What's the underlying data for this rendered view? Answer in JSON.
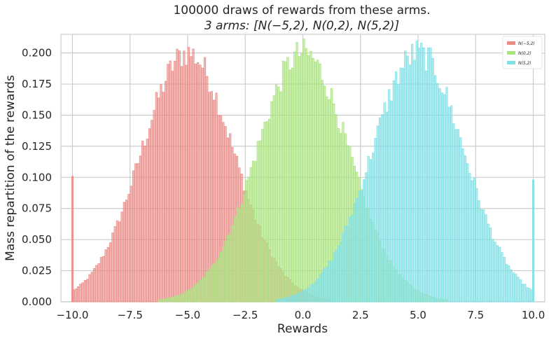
{
  "chart_data": {
    "type": "histogram",
    "title_line1": "100000 draws of rewards from these arms.",
    "title_line2": "3 arms: [N(−5,2), N(0,2), N(5,2)]",
    "xlabel": "Rewards",
    "ylabel": "Mass repartition of the rewards",
    "xlim": [
      -10.5,
      10.5
    ],
    "ylim": [
      0,
      0.215
    ],
    "xticks": [
      -10.0,
      -7.5,
      -5.0,
      -2.5,
      0.0,
      2.5,
      5.0,
      7.5,
      10.0
    ],
    "xtick_labels": [
      "−10.0",
      "−7.5",
      "−5.0",
      "−2.5",
      "0.0",
      "2.5",
      "5.0",
      "7.5",
      "10.0"
    ],
    "yticks": [
      0.0,
      0.025,
      0.05,
      0.075,
      0.1,
      0.125,
      0.15,
      0.175,
      0.2
    ],
    "ytick_labels": [
      "0.000",
      "0.025",
      "0.050",
      "0.075",
      "0.100",
      "0.125",
      "0.150",
      "0.175",
      "0.200"
    ],
    "grid": true,
    "legend_position": "top-right",
    "clip_range": [
      -10.0,
      10.0
    ],
    "bin_width": 0.1,
    "series": [
      {
        "name": "N(−5,2)",
        "mean": -5,
        "std": 2,
        "peak": 0.2,
        "edge_spike": {
          "x": -10.0,
          "value": 0.101
        },
        "color": "#ea8b87"
      },
      {
        "name": "N(0,2)",
        "mean": 0,
        "std": 2,
        "peak": 0.2,
        "color": "#a9e37d"
      },
      {
        "name": "N(5,2)",
        "mean": 5,
        "std": 2,
        "peak": 0.2,
        "edge_spike": {
          "x": 10.0,
          "value": 0.098
        },
        "color": "#7fe0e6"
      }
    ]
  }
}
